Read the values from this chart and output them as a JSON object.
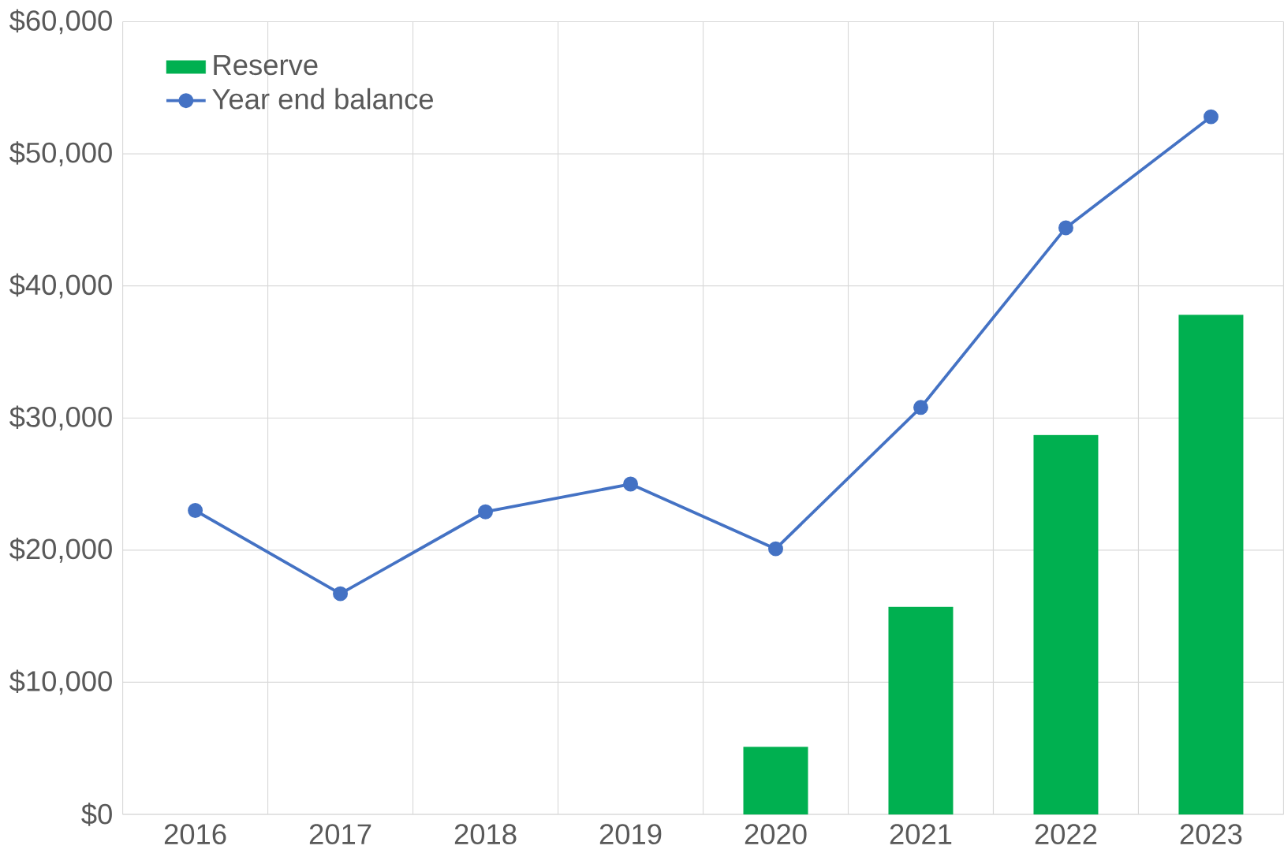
{
  "chart_data": {
    "type": "bar",
    "categories": [
      "2016",
      "2017",
      "2018",
      "2019",
      "2020",
      "2021",
      "2022",
      "2023"
    ],
    "series": [
      {
        "name": "Reserve",
        "color": "#00b050",
        "values": [
          null,
          null,
          null,
          null,
          5100,
          15700,
          28700,
          37800
        ]
      },
      {
        "name": "Year end balance",
        "type": "line",
        "color": "#4472c4",
        "marker": "circle",
        "values": [
          23000,
          16700,
          22900,
          25000,
          20100,
          30800,
          44400,
          52800
        ]
      }
    ],
    "ylim": [
      0,
      60000
    ],
    "yticks": [
      {
        "value": 0,
        "label": "$0"
      },
      {
        "value": 10000,
        "label": "$10,000"
      },
      {
        "value": 20000,
        "label": "$20,000"
      },
      {
        "value": 30000,
        "label": "$30,000"
      },
      {
        "value": 40000,
        "label": "$40,000"
      },
      {
        "value": 50000,
        "label": "$50,000"
      },
      {
        "value": 60000,
        "label": "$60,000"
      }
    ],
    "grid": true,
    "legend": "top left"
  }
}
